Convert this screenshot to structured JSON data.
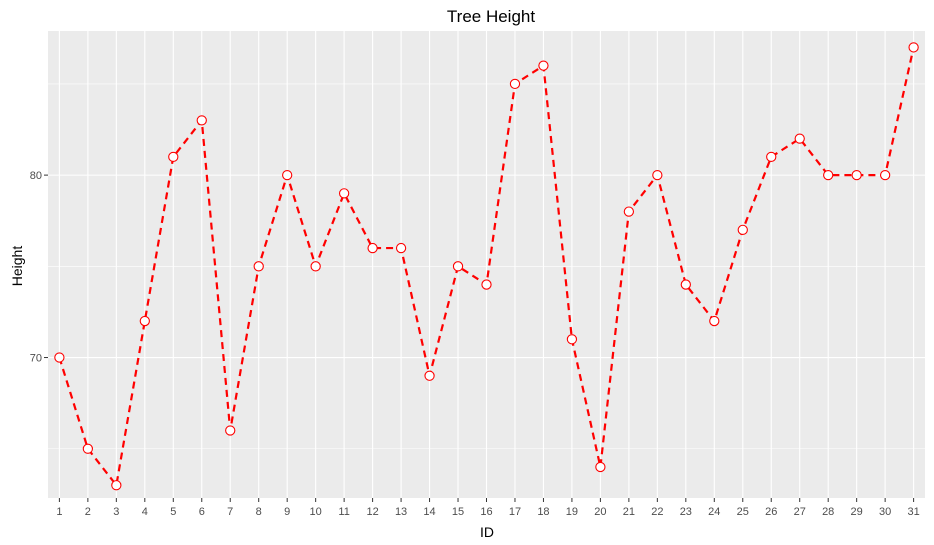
{
  "chart_data": {
    "type": "line",
    "title": "Tree Height",
    "xlabel": "ID",
    "ylabel": "Height",
    "x": [
      1,
      2,
      3,
      4,
      5,
      6,
      7,
      8,
      9,
      10,
      11,
      12,
      13,
      14,
      15,
      16,
      17,
      18,
      19,
      20,
      21,
      22,
      23,
      24,
      25,
      26,
      27,
      28,
      29,
      30,
      31
    ],
    "y": [
      70,
      65,
      63,
      72,
      81,
      83,
      66,
      75,
      80,
      75,
      79,
      76,
      76,
      69,
      75,
      74,
      85,
      86,
      71,
      64,
      78,
      80,
      74,
      72,
      77,
      81,
      82,
      80,
      80,
      80,
      87
    ],
    "xlim": [
      0.6,
      31.4
    ],
    "ylim": [
      62.3,
      87.9
    ],
    "yticks": [
      70,
      80
    ],
    "line_color": "#ff0000",
    "line_style": "dashed",
    "marker": "open-circle",
    "panel_background": "#ebebeb",
    "grid": true,
    "legend": "none"
  }
}
